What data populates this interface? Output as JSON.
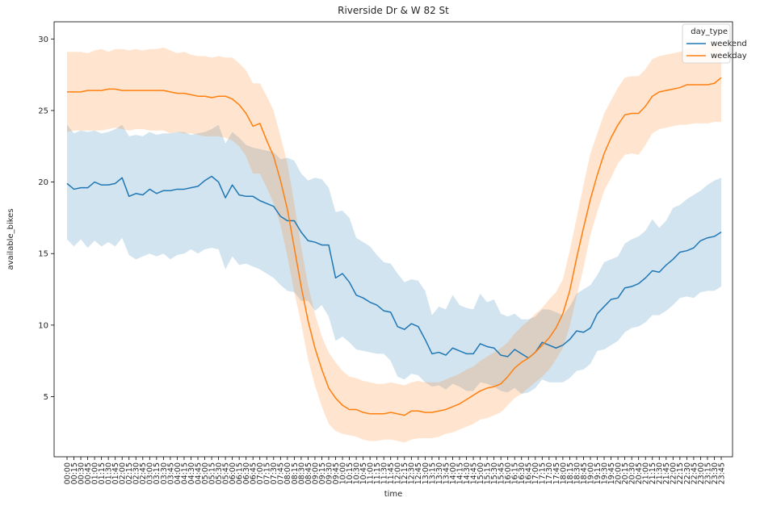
{
  "chart_data": {
    "type": "line",
    "title": "Riverside Dr & W 82 St",
    "xlabel": "time",
    "ylabel": "available_bikes",
    "ylim": [
      0.8,
      31.2
    ],
    "yticks": [
      5,
      10,
      15,
      20,
      25,
      30
    ],
    "grid": false,
    "legend": {
      "title": "day_type",
      "placement": "top-right"
    },
    "categories": [
      "00:00",
      "00:15",
      "00:30",
      "00:45",
      "01:00",
      "01:15",
      "01:30",
      "01:45",
      "02:00",
      "02:15",
      "02:30",
      "02:45",
      "03:00",
      "03:15",
      "03:30",
      "03:45",
      "04:00",
      "04:15",
      "04:30",
      "04:45",
      "05:00",
      "05:15",
      "05:30",
      "05:45",
      "06:00",
      "06:15",
      "06:30",
      "06:45",
      "07:00",
      "07:15",
      "07:30",
      "07:45",
      "08:00",
      "08:15",
      "08:30",
      "08:45",
      "09:00",
      "09:15",
      "09:30",
      "09:45",
      "10:00",
      "10:15",
      "10:30",
      "10:45",
      "11:00",
      "11:15",
      "11:30",
      "11:45",
      "12:00",
      "12:15",
      "12:30",
      "12:45",
      "13:00",
      "13:15",
      "13:30",
      "13:45",
      "14:00",
      "14:15",
      "14:30",
      "14:45",
      "15:00",
      "15:15",
      "15:30",
      "15:45",
      "16:00",
      "16:15",
      "16:30",
      "16:45",
      "17:00",
      "17:15",
      "17:30",
      "17:45",
      "18:00",
      "18:15",
      "18:30",
      "18:45",
      "19:00",
      "19:15",
      "19:30",
      "19:45",
      "20:00",
      "20:15",
      "20:30",
      "20:45",
      "21:00",
      "21:15",
      "21:30",
      "21:45",
      "22:00",
      "22:15",
      "22:30",
      "22:45",
      "23:00",
      "23:15",
      "23:30",
      "23:45"
    ],
    "series": [
      {
        "name": "weekend",
        "color": "#1f77b4",
        "values": [
          19.9,
          19.5,
          19.6,
          19.6,
          20.0,
          19.8,
          19.8,
          19.9,
          20.3,
          19.0,
          19.2,
          19.1,
          19.5,
          19.2,
          19.4,
          19.4,
          19.5,
          19.5,
          19.6,
          19.7,
          20.1,
          20.4,
          20.0,
          18.9,
          19.8,
          19.1,
          19.0,
          19.0,
          18.7,
          18.5,
          18.3,
          17.6,
          17.3,
          17.3,
          16.5,
          15.9,
          15.8,
          15.6,
          15.6,
          13.3,
          13.6,
          13.0,
          12.1,
          11.9,
          11.6,
          11.4,
          11.0,
          10.9,
          9.9,
          9.7,
          10.1,
          9.9,
          9.0,
          8.0,
          8.1,
          7.9,
          8.4,
          8.2,
          8.0,
          8.0,
          8.7,
          8.5,
          8.4,
          7.9,
          7.8,
          8.3,
          8.0,
          7.7,
          8.1,
          8.8,
          8.6,
          8.4,
          8.6,
          9.0,
          9.6,
          9.5,
          9.8,
          10.8,
          11.3,
          11.8,
          11.9,
          12.6,
          12.7,
          12.9,
          13.3,
          13.8,
          13.7,
          14.2,
          14.6,
          15.1,
          15.2,
          15.4,
          15.9,
          16.1,
          16.2,
          16.5
        ],
        "ci_low": [
          16.0,
          15.5,
          16.0,
          15.4,
          15.9,
          15.5,
          15.8,
          15.5,
          16.1,
          14.9,
          14.6,
          14.8,
          15.0,
          14.8,
          15.0,
          14.6,
          14.9,
          15.0,
          15.3,
          15.0,
          15.3,
          15.4,
          15.3,
          13.9,
          14.8,
          14.2,
          14.3,
          14.1,
          13.9,
          13.6,
          13.3,
          12.8,
          12.4,
          12.3,
          11.7,
          11.7,
          11.0,
          11.4,
          10.6,
          8.9,
          9.2,
          8.8,
          8.3,
          8.2,
          8.1,
          8.0,
          8.0,
          7.5,
          6.4,
          6.2,
          6.6,
          6.5,
          6.0,
          5.7,
          5.8,
          5.5,
          5.9,
          5.7,
          5.4,
          5.4,
          6.0,
          5.9,
          5.7,
          5.4,
          5.3,
          5.6,
          5.2,
          5.3,
          5.6,
          6.2,
          6.0,
          6.0,
          6.0,
          6.3,
          6.8,
          6.9,
          7.3,
          8.2,
          8.3,
          8.6,
          8.9,
          9.5,
          9.8,
          9.9,
          10.2,
          10.7,
          10.7,
          11.0,
          11.4,
          11.9,
          12.0,
          11.9,
          12.3,
          12.4,
          12.4,
          12.7
        ],
        "ci_high": [
          24.0,
          23.4,
          23.6,
          23.5,
          23.6,
          23.4,
          23.5,
          23.7,
          24.0,
          23.2,
          23.3,
          23.2,
          23.5,
          23.3,
          23.4,
          23.4,
          23.5,
          23.5,
          23.3,
          23.4,
          23.5,
          23.7,
          24.0,
          22.7,
          23.5,
          23.1,
          22.6,
          22.4,
          22.3,
          22.2,
          22.1,
          21.6,
          21.7,
          21.5,
          20.6,
          20.1,
          20.3,
          20.2,
          19.6,
          17.9,
          18.0,
          17.5,
          16.1,
          15.8,
          15.5,
          14.9,
          14.4,
          14.3,
          13.6,
          13.0,
          13.2,
          13.1,
          12.4,
          10.7,
          11.3,
          11.1,
          12.1,
          11.4,
          11.2,
          11.1,
          12.2,
          11.6,
          11.8,
          10.8,
          10.6,
          10.8,
          10.4,
          10.4,
          10.6,
          11.1,
          11.1,
          10.9,
          10.7,
          11.3,
          12.2,
          12.5,
          12.8,
          13.5,
          14.4,
          14.6,
          14.8,
          15.7,
          16.0,
          16.2,
          16.6,
          17.4,
          16.8,
          17.3,
          18.2,
          18.4,
          18.8,
          19.1,
          19.4,
          19.8,
          20.1,
          20.3
        ]
      },
      {
        "name": "weekday",
        "color": "#ff7f0e",
        "values": [
          26.3,
          26.3,
          26.3,
          26.4,
          26.4,
          26.4,
          26.5,
          26.5,
          26.4,
          26.4,
          26.4,
          26.4,
          26.4,
          26.4,
          26.4,
          26.3,
          26.2,
          26.2,
          26.1,
          26.0,
          26.0,
          25.9,
          26.0,
          26.0,
          25.8,
          25.4,
          24.8,
          23.9,
          24.1,
          22.9,
          21.8,
          20.1,
          18.1,
          15.4,
          12.7,
          10.3,
          8.4,
          6.9,
          5.6,
          4.9,
          4.4,
          4.1,
          4.1,
          3.9,
          3.8,
          3.8,
          3.8,
          3.9,
          3.8,
          3.7,
          4.0,
          4.0,
          3.9,
          3.9,
          4.0,
          4.1,
          4.3,
          4.5,
          4.8,
          5.1,
          5.4,
          5.6,
          5.7,
          5.9,
          6.4,
          7.0,
          7.4,
          7.7,
          8.1,
          8.6,
          9.1,
          9.8,
          10.8,
          12.4,
          14.7,
          16.8,
          18.8,
          20.5,
          22.0,
          23.1,
          24.0,
          24.7,
          24.8,
          24.8,
          25.3,
          26.0,
          26.3,
          26.4,
          26.5,
          26.6,
          26.8,
          26.8,
          26.8,
          26.8,
          26.9,
          27.3
        ],
        "ci_low": [
          23.5,
          23.6,
          23.6,
          23.6,
          23.6,
          23.6,
          23.7,
          23.8,
          23.7,
          23.6,
          23.7,
          23.7,
          23.6,
          23.6,
          23.6,
          23.4,
          23.5,
          23.4,
          23.4,
          23.3,
          23.2,
          23.2,
          23.2,
          23.1,
          22.9,
          22.5,
          21.8,
          20.6,
          20.6,
          19.6,
          18.5,
          17.0,
          14.8,
          12.3,
          10.1,
          7.6,
          5.8,
          4.3,
          3.1,
          2.6,
          2.4,
          2.3,
          2.2,
          2.0,
          1.9,
          1.9,
          2.0,
          2.0,
          1.9,
          1.8,
          2.0,
          2.1,
          2.1,
          2.1,
          2.2,
          2.4,
          2.5,
          2.7,
          2.9,
          3.1,
          3.4,
          3.5,
          3.7,
          3.9,
          4.4,
          4.9,
          5.2,
          5.6,
          6.0,
          6.4,
          6.9,
          7.6,
          8.4,
          9.9,
          12.0,
          14.0,
          16.3,
          17.9,
          19.4,
          20.3,
          21.3,
          21.9,
          22.0,
          21.9,
          22.6,
          23.4,
          23.7,
          23.8,
          23.9,
          24.0,
          24.0,
          24.1,
          24.1,
          24.1,
          24.2,
          24.2
        ],
        "ci_high": [
          29.1,
          29.1,
          29.1,
          29.0,
          29.2,
          29.3,
          29.1,
          29.3,
          29.3,
          29.2,
          29.3,
          29.2,
          29.3,
          29.3,
          29.4,
          29.2,
          29.0,
          29.1,
          28.9,
          28.8,
          28.8,
          28.7,
          28.8,
          28.7,
          28.7,
          28.3,
          27.8,
          26.9,
          26.9,
          26.0,
          25.0,
          23.2,
          21.3,
          18.5,
          15.5,
          12.8,
          10.8,
          9.2,
          8.1,
          7.4,
          6.8,
          6.4,
          6.3,
          6.1,
          6.0,
          5.9,
          5.9,
          6.0,
          5.9,
          5.8,
          6.0,
          6.1,
          6.0,
          6.0,
          6.0,
          6.2,
          6.4,
          6.6,
          6.9,
          7.1,
          7.5,
          7.8,
          8.1,
          8.4,
          8.8,
          9.4,
          9.9,
          10.3,
          10.8,
          11.2,
          11.8,
          12.3,
          13.2,
          15.2,
          17.5,
          19.8,
          22.0,
          23.4,
          24.8,
          25.7,
          26.6,
          27.3,
          27.4,
          27.4,
          27.9,
          28.6,
          28.8,
          28.9,
          29.0,
          29.1,
          29.3,
          29.4,
          29.5,
          29.6,
          29.6,
          29.8
        ]
      }
    ]
  }
}
